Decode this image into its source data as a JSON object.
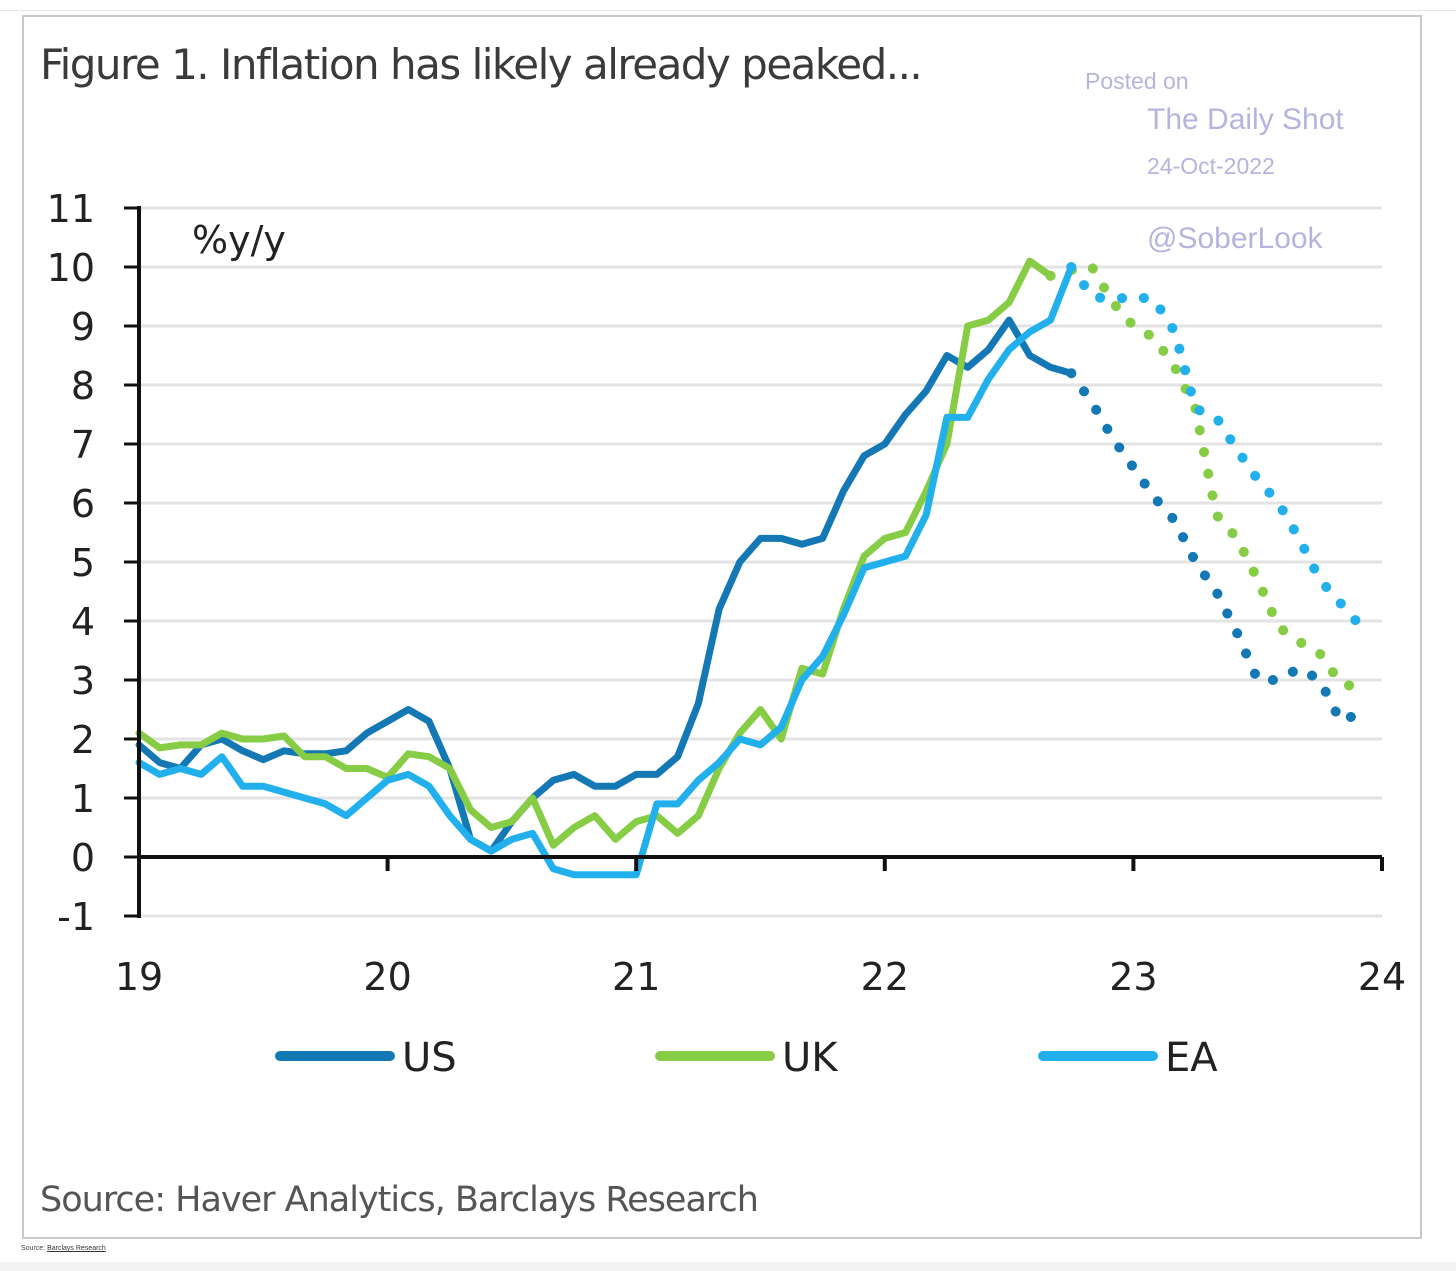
{
  "note": {
    "prefix": "Source:",
    "link": "Barclays Research"
  },
  "watermark": {
    "posted": "Posted on",
    "site": "The Daily Shot",
    "date": "24-Oct-2022",
    "handle": "@SoberLook"
  },
  "chart_data": {
    "type": "line",
    "title": "Figure 1. Inflation has likely already peaked...",
    "ylabel": "%y/y",
    "source": "Source: Haver Analytics, Barclays Research",
    "x_unit": "monthly, index 0 = Jan 2019",
    "xlim": [
      2019,
      2024
    ],
    "ylim": [
      -1,
      11
    ],
    "x_ticks": [
      "19",
      "20",
      "21",
      "22",
      "23",
      "24"
    ],
    "y_ticks": [
      "-1",
      "0",
      "1",
      "2",
      "3",
      "4",
      "5",
      "6",
      "7",
      "8",
      "9",
      "10",
      "11"
    ],
    "grid": true,
    "legend_position": "bottom",
    "series": [
      {
        "name": "US",
        "color": "#1478b4",
        "actual": [
          1.9,
          1.6,
          1.5,
          1.9,
          2.0,
          1.8,
          1.65,
          1.8,
          1.75,
          1.75,
          1.8,
          2.1,
          2.3,
          2.5,
          2.3,
          1.5,
          0.3,
          0.1,
          0.6,
          1.0,
          1.3,
          1.4,
          1.2,
          1.2,
          1.4,
          1.4,
          1.7,
          2.6,
          4.2,
          5.0,
          5.4,
          5.4,
          5.3,
          5.4,
          6.2,
          6.8,
          7.0,
          7.5,
          7.9,
          8.5,
          8.3,
          8.6,
          9.1,
          8.5,
          8.3,
          8.2
        ],
        "forecast_start": 45,
        "forecast": [
          8.2,
          7.7,
          7.1,
          6.6,
          6.1,
          5.7,
          5.0,
          4.5,
          3.8,
          3.0,
          3.0,
          3.2,
          3.0,
          2.3,
          2.45
        ]
      },
      {
        "name": "UK",
        "color": "#86cc44",
        "actual": [
          2.1,
          1.85,
          1.9,
          1.9,
          2.1,
          2.0,
          2.0,
          2.05,
          1.7,
          1.7,
          1.5,
          1.5,
          1.35,
          1.75,
          1.7,
          1.5,
          0.8,
          0.5,
          0.6,
          1.0,
          0.2,
          0.5,
          0.7,
          0.3,
          0.6,
          0.7,
          0.4,
          0.7,
          1.5,
          2.1,
          2.5,
          2.0,
          3.2,
          3.1,
          4.2,
          5.1,
          5.4,
          5.5,
          6.2,
          7.0,
          9.0,
          9.1,
          9.4,
          10.1,
          9.85
        ],
        "forecast_start": 44,
        "forecast": [
          9.85,
          9.95,
          10.0,
          9.4,
          9.0,
          8.8,
          8.3,
          7.6,
          5.8,
          5.4,
          4.7,
          3.9,
          3.65,
          3.45,
          2.95,
          2.85
        ]
      },
      {
        "name": "EA",
        "color": "#21b0ec",
        "actual": [
          1.6,
          1.4,
          1.5,
          1.4,
          1.7,
          1.2,
          1.2,
          1.1,
          1.0,
          0.9,
          0.7,
          1.0,
          1.3,
          1.4,
          1.2,
          0.7,
          0.3,
          0.1,
          0.3,
          0.4,
          -0.2,
          -0.3,
          -0.3,
          -0.3,
          -0.3,
          0.9,
          0.9,
          1.3,
          1.6,
          2.0,
          1.9,
          2.2,
          3.0,
          3.4,
          4.1,
          4.9,
          5.0,
          5.1,
          5.8,
          7.45,
          7.45,
          8.1,
          8.6,
          8.9,
          9.1,
          10.0
        ],
        "forecast_start": 45,
        "forecast": [
          10.0,
          9.5,
          9.45,
          9.5,
          9.45,
          8.9,
          7.6,
          7.45,
          6.9,
          6.4,
          6.0,
          5.4,
          4.7,
          4.3,
          3.9
        ]
      }
    ]
  }
}
